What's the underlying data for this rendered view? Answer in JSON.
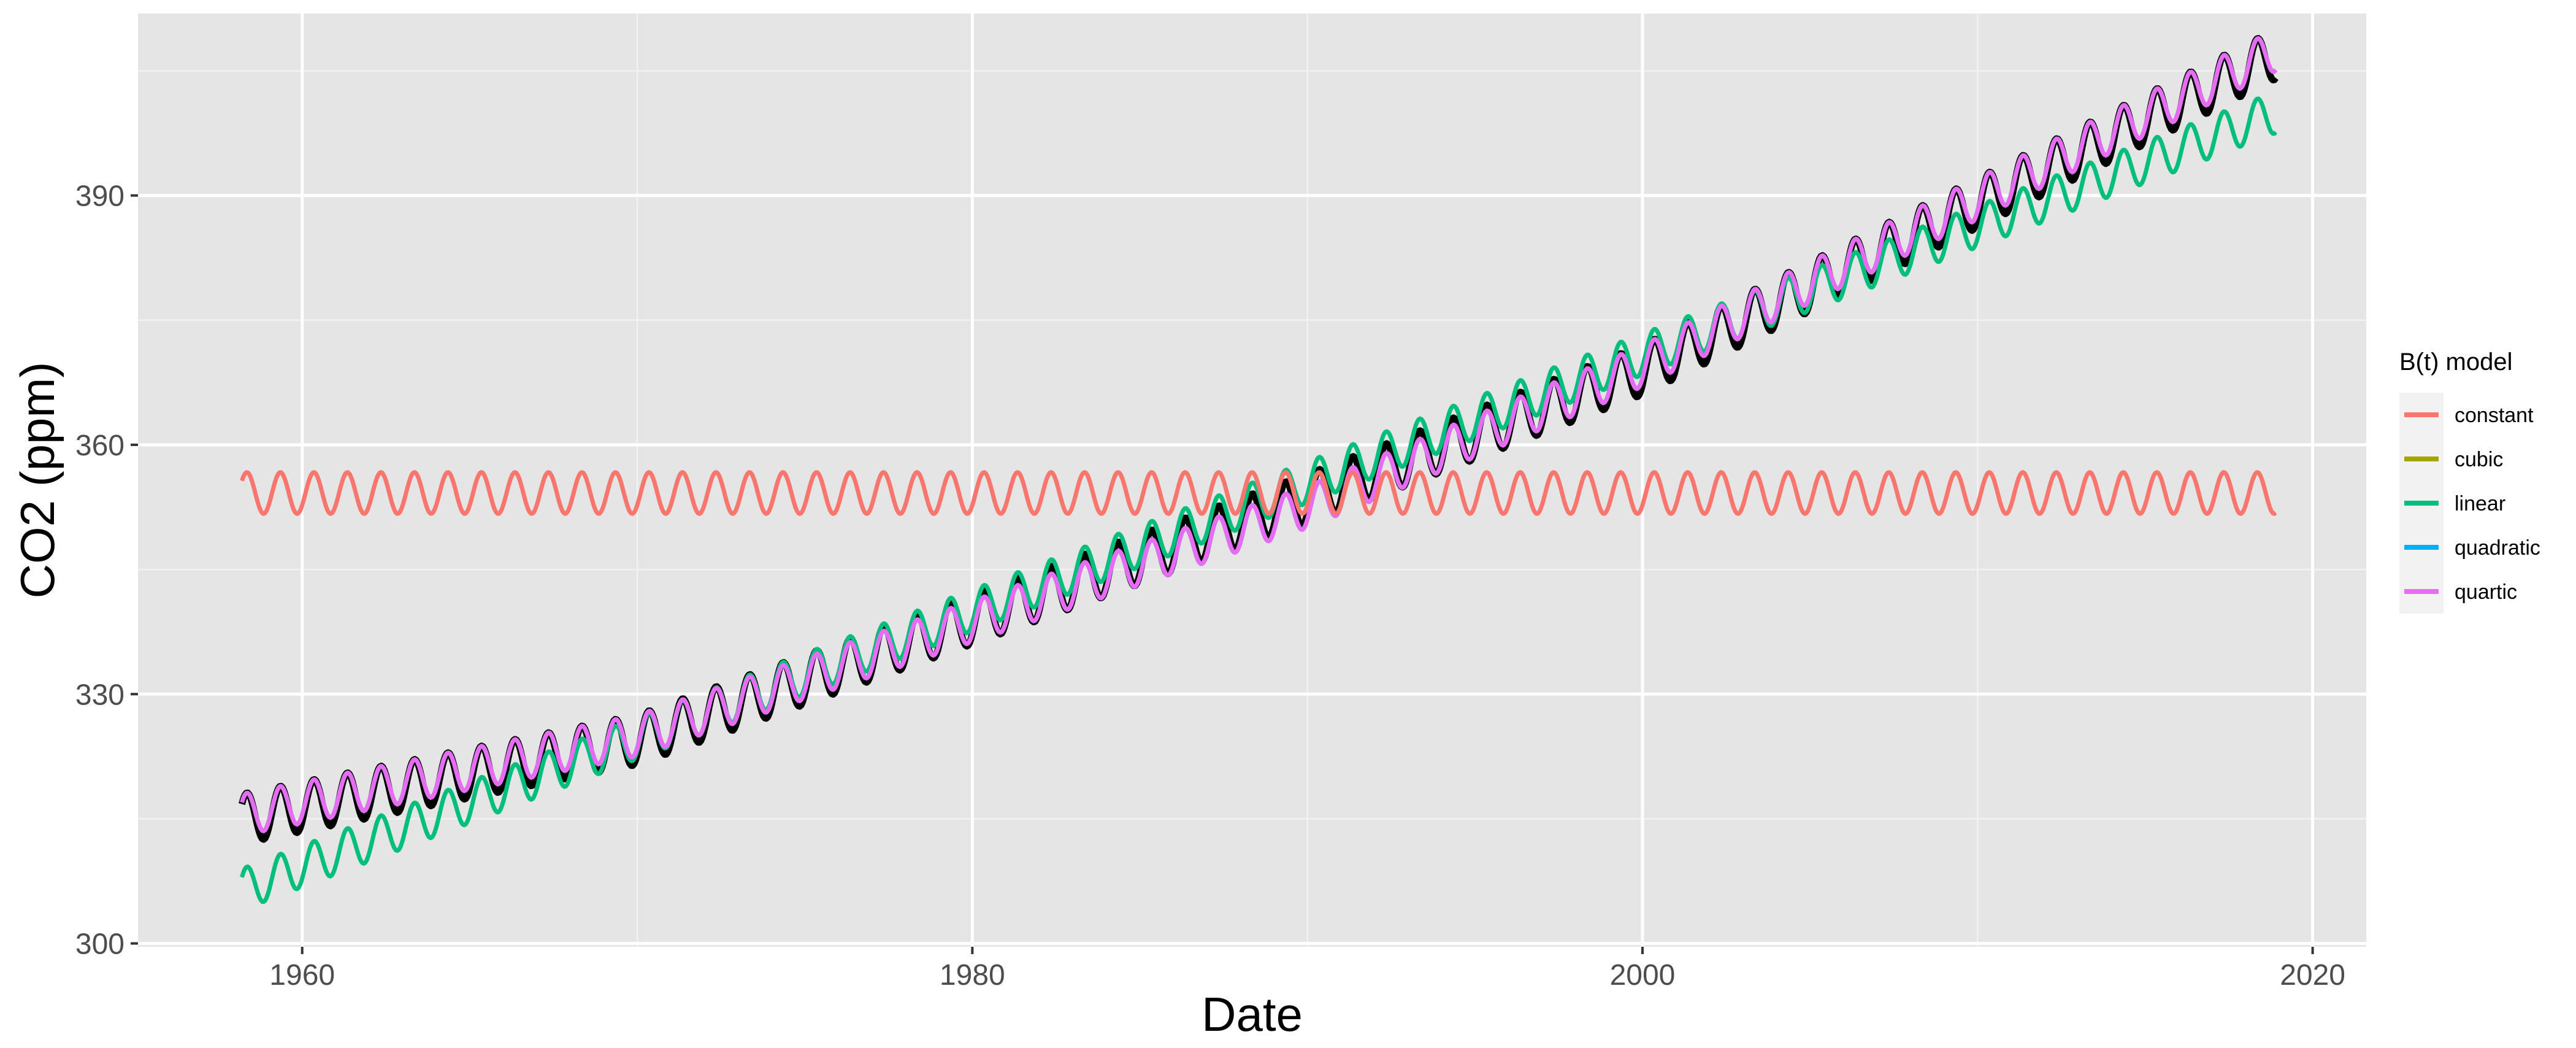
{
  "chart_data": {
    "type": "line",
    "xlabel": "Date",
    "ylabel": "CO2 (ppm)",
    "xlim": [
      1955.1,
      2021.6
    ],
    "ylim": [
      299.6,
      411.9
    ],
    "x_ticks": [
      1960,
      1980,
      2000,
      2020
    ],
    "x_tick_labels": [
      "1960",
      "1980",
      "2000",
      "2020"
    ],
    "y_ticks": [
      300,
      330,
      360,
      390
    ],
    "y_tick_labels": [
      "300",
      "330",
      "360",
      "390"
    ],
    "grid": true,
    "legend": {
      "title": "B(t) model",
      "position": "right",
      "entries": [
        "constant",
        "cubic",
        "linear",
        "quadratic",
        "quartic"
      ]
    },
    "x_range": [
      1958.2,
      2018.9
    ],
    "seasonal_amplitude_ppm": 2.5,
    "observed": {
      "color": "#000000",
      "seasonal_amplitude_ppm": 3.0,
      "trend_points": [
        [
          1958.2,
          315.0
        ],
        [
          1970,
          324.5
        ],
        [
          1990,
          353.5
        ],
        [
          2000,
          369.0
        ],
        [
          2018.9,
          407.0
        ]
      ]
    },
    "series": [
      {
        "name": "constant",
        "color": "#F8766D",
        "trend_points": [
          [
            1958.2,
            354.2
          ],
          [
            2018.9,
            354.2
          ]
        ]
      },
      {
        "name": "cubic",
        "color": "#A3A500",
        "trend_points": [
          [
            1958.2,
            315.5
          ],
          [
            1970,
            325.0
          ],
          [
            1990,
            352.5
          ],
          [
            2000,
            369.5
          ],
          [
            2018.9,
            407.5
          ]
        ]
      },
      {
        "name": "linear",
        "color": "#00BF7D",
        "trend_points": [
          [
            1958.2,
            306.5
          ],
          [
            2018.9,
            400.0
          ]
        ]
      },
      {
        "name": "quadratic",
        "color": "#00B0F6",
        "trend_points": [
          [
            1958.2,
            315.5
          ],
          [
            1970,
            325.0
          ],
          [
            1990,
            352.5
          ],
          [
            2000,
            369.5
          ],
          [
            2018.9,
            407.5
          ]
        ]
      },
      {
        "name": "quartic",
        "color": "#E76BF3",
        "trend_points": [
          [
            1958.2,
            315.5
          ],
          [
            1970,
            325.0
          ],
          [
            1990,
            352.5
          ],
          [
            2000,
            369.5
          ],
          [
            2018.9,
            407.5
          ]
        ]
      }
    ]
  }
}
